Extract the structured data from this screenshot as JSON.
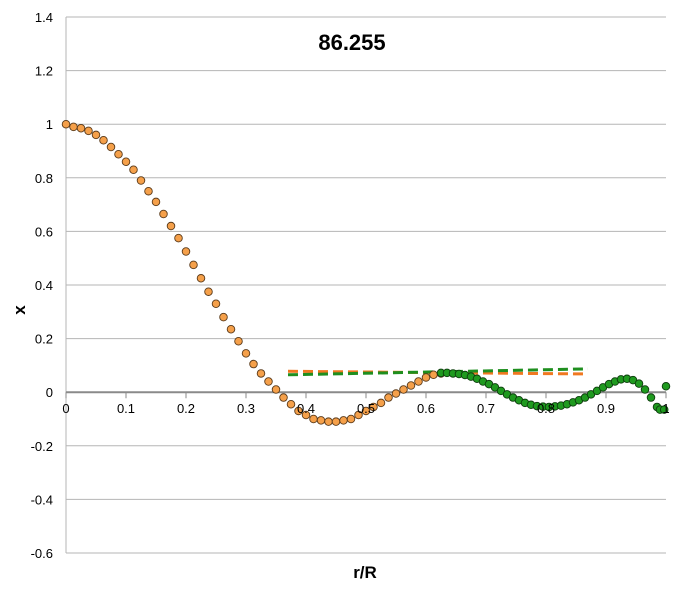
{
  "chart_data": {
    "type": "scatter",
    "title": "86.255",
    "xlabel": "r/R",
    "ylabel": "x",
    "xlim": [
      0,
      1
    ],
    "ylim": [
      -0.6,
      1.4
    ],
    "x_ticks": [
      "0",
      "0.1",
      "0.2",
      "0.3",
      "0.4",
      "0.5",
      "0.6",
      "0.7",
      "0.8",
      "0.9",
      "1"
    ],
    "y_ticks": [
      "-0.6",
      "-0.4",
      "-0.2",
      "0",
      "0.2",
      "0.4",
      "0.6",
      "0.8",
      "1",
      "1.2",
      "1.4"
    ],
    "grid": "horizontal",
    "legend": "none",
    "colors": {
      "orange": "#f5a04a",
      "orange_edge": "#5a3a1a",
      "green": "#1f9a1f",
      "green_edge": "#0d3d0d",
      "dash_orange": "#f07820",
      "dash_green": "#1f8f1f",
      "grid": "#b5b5b5",
      "zero_line": "#8a8a8a"
    },
    "series": [
      {
        "color": "orange",
        "points": [
          [
            0.0,
            1.0
          ],
          [
            0.0125,
            0.99
          ],
          [
            0.025,
            0.985
          ],
          [
            0.0375,
            0.975
          ],
          [
            0.05,
            0.96
          ],
          [
            0.0625,
            0.94
          ],
          [
            0.075,
            0.915
          ],
          [
            0.0875,
            0.888
          ],
          [
            0.1,
            0.86
          ],
          [
            0.1125,
            0.83
          ],
          [
            0.125,
            0.79
          ],
          [
            0.1375,
            0.75
          ],
          [
            0.15,
            0.71
          ],
          [
            0.1625,
            0.665
          ],
          [
            0.175,
            0.62
          ],
          [
            0.1875,
            0.575
          ],
          [
            0.2,
            0.525
          ],
          [
            0.2125,
            0.475
          ],
          [
            0.225,
            0.425
          ],
          [
            0.2375,
            0.375
          ],
          [
            0.25,
            0.33
          ],
          [
            0.2625,
            0.28
          ],
          [
            0.275,
            0.235
          ],
          [
            0.2875,
            0.19
          ],
          [
            0.3,
            0.145
          ],
          [
            0.3125,
            0.105
          ],
          [
            0.325,
            0.07
          ],
          [
            0.3375,
            0.04
          ],
          [
            0.35,
            0.01
          ],
          [
            0.3625,
            -0.02
          ],
          [
            0.375,
            -0.045
          ],
          [
            0.3875,
            -0.07
          ],
          [
            0.4,
            -0.085
          ],
          [
            0.4125,
            -0.1
          ],
          [
            0.425,
            -0.105
          ],
          [
            0.4375,
            -0.11
          ],
          [
            0.45,
            -0.11
          ],
          [
            0.4625,
            -0.105
          ],
          [
            0.475,
            -0.1
          ],
          [
            0.4875,
            -0.085
          ],
          [
            0.5,
            -0.07
          ],
          [
            0.5125,
            -0.055
          ],
          [
            0.525,
            -0.04
          ],
          [
            0.5375,
            -0.02
          ],
          [
            0.55,
            -0.005
          ],
          [
            0.5625,
            0.01
          ],
          [
            0.575,
            0.025
          ],
          [
            0.5875,
            0.04
          ],
          [
            0.6,
            0.055
          ],
          [
            0.6125,
            0.065
          ],
          [
            0.625,
            0.07
          ]
        ]
      },
      {
        "color": "green",
        "points": [
          [
            0.625,
            0.072
          ],
          [
            0.635,
            0.072
          ],
          [
            0.645,
            0.07
          ],
          [
            0.655,
            0.068
          ],
          [
            0.665,
            0.064
          ],
          [
            0.675,
            0.058
          ],
          [
            0.685,
            0.05
          ],
          [
            0.695,
            0.04
          ],
          [
            0.705,
            0.03
          ],
          [
            0.715,
            0.018
          ],
          [
            0.725,
            0.005
          ],
          [
            0.735,
            -0.008
          ],
          [
            0.745,
            -0.02
          ],
          [
            0.755,
            -0.03
          ],
          [
            0.765,
            -0.04
          ],
          [
            0.775,
            -0.047
          ],
          [
            0.785,
            -0.052
          ],
          [
            0.795,
            -0.054
          ],
          [
            0.805,
            -0.055
          ],
          [
            0.815,
            -0.053
          ],
          [
            0.825,
            -0.05
          ],
          [
            0.835,
            -0.045
          ],
          [
            0.845,
            -0.038
          ],
          [
            0.855,
            -0.03
          ],
          [
            0.865,
            -0.02
          ],
          [
            0.875,
            -0.008
          ],
          [
            0.885,
            0.005
          ],
          [
            0.895,
            0.018
          ],
          [
            0.905,
            0.03
          ],
          [
            0.915,
            0.04
          ],
          [
            0.925,
            0.048
          ],
          [
            0.935,
            0.05
          ],
          [
            0.945,
            0.045
          ],
          [
            0.955,
            0.032
          ],
          [
            0.965,
            0.01
          ],
          [
            0.975,
            -0.02
          ],
          [
            0.985,
            -0.055
          ],
          [
            0.99,
            -0.065
          ],
          [
            0.997,
            -0.065
          ],
          [
            1.0,
            0.022
          ]
        ]
      }
    ],
    "dashed_lines": [
      {
        "color": "dash_orange",
        "y_start": 0.078,
        "y_end": 0.068,
        "x_start": 0.37,
        "x_end": 0.87
      },
      {
        "color": "dash_green",
        "y_start": 0.065,
        "y_end": 0.087,
        "x_start": 0.37,
        "x_end": 0.87
      }
    ]
  }
}
